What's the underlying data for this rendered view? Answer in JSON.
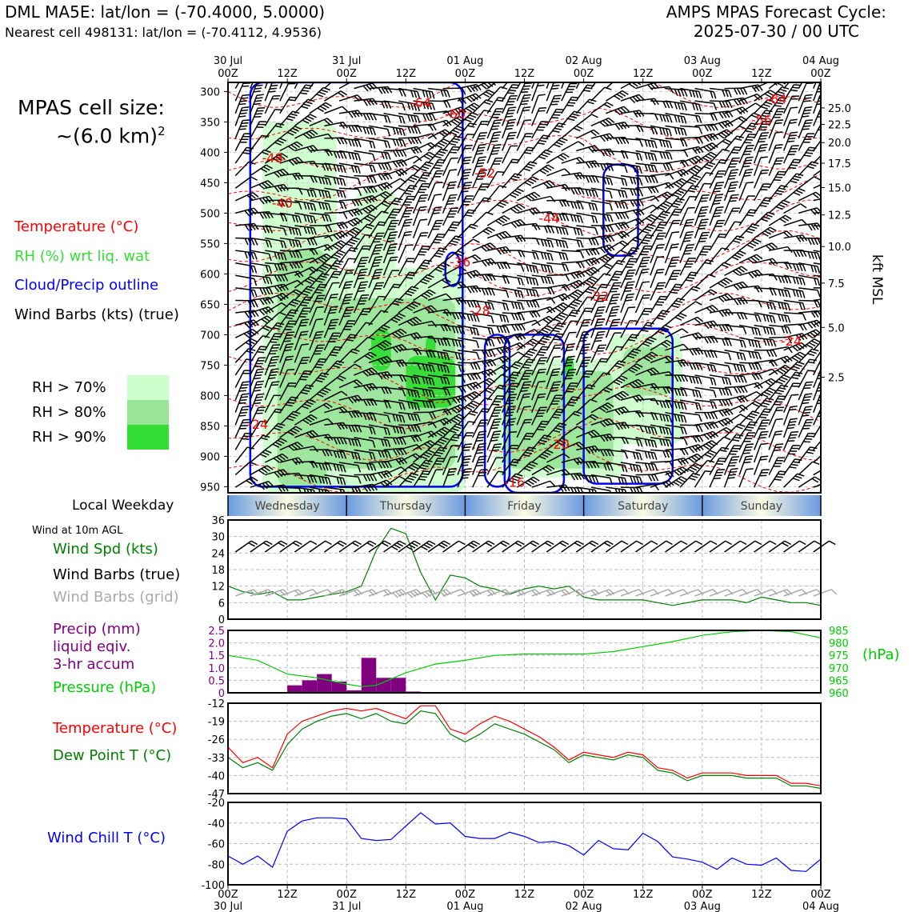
{
  "header": {
    "station_line": "DML MA5E: lat/lon = (-70.4000, 5.0000)",
    "cell_line": "Nearest cell 498131: lat/lon = (-70.4112, 4.9536)",
    "forecast_title": "AMPS MPAS Forecast Cycle:",
    "forecast_cycle": "2025-07-30 / 00 UTC"
  },
  "cell_size": {
    "label": "MPAS cell size:",
    "value": "~(6.0 km)",
    "exp": "2"
  },
  "legend": {
    "temperature": "Temperature (°C)",
    "rh": "RH (%) wrt liq. wat",
    "cloud": "Cloud/Precip outline",
    "wind": "Wind Barbs (kts) (true)",
    "rh70": "RH > 70%",
    "rh80": "RH > 80%",
    "rh90": "RH > 90%"
  },
  "colors": {
    "temperature": "#ff0000",
    "rh_label": "#33dd33",
    "cloud": "#0000ff",
    "rh70": "#ccffcc",
    "rh80": "#99e699",
    "rh90": "#33dd33",
    "wind_speed": "#008000",
    "precip": "#800080",
    "pressure": "#00cc00",
    "dewpoint": "#008000",
    "windchill": "#0000ff",
    "grid_barbs": "#aaaaaa"
  },
  "time_axis": {
    "top_dates": [
      "30 Jul",
      "31 Jul",
      "01 Aug",
      "02 Aug",
      "03 Aug",
      "04 Aug"
    ],
    "top_hours": [
      "00Z",
      "12Z",
      "00Z",
      "12Z",
      "00Z",
      "12Z",
      "00Z",
      "12Z",
      "00Z",
      "12Z",
      "00Z"
    ],
    "bottom_hours": [
      "00Z",
      "12Z",
      "00Z",
      "12Z",
      "00Z",
      "12Z",
      "00Z",
      "12Z",
      "00Z",
      "12Z",
      "00Z"
    ],
    "bottom_dates": [
      "30 Jul",
      "31 Jul",
      "01 Aug",
      "02 Aug",
      "03 Aug",
      "04 Aug"
    ]
  },
  "weekday": {
    "label": "Local Weekday",
    "days": [
      "Wednesday",
      "Thursday",
      "Friday",
      "Saturday",
      "Sunday"
    ]
  },
  "sfc_labels": {
    "wind_at": "Wind at 10m AGL",
    "wind_spd": "Wind Spd (kts)",
    "barbs_true": "Wind Barbs (true)",
    "barbs_grid": "Wind Barbs (grid)",
    "precip1": "Precip (mm)",
    "precip2": "liquid eqiv.",
    "precip3": "3-hr accum",
    "pressure": "Pressure (hPa)",
    "hpa_unit": "(hPa)",
    "temp": "Temperature (°C)",
    "dew": "Dew Point T (°C)",
    "chill": "Wind Chill T (°C)"
  },
  "chart_data": [
    {
      "type": "heatmap",
      "name": "time-height cross section",
      "y_label_right": "kft MSL",
      "y_pressure_ticks": [
        300,
        350,
        400,
        450,
        500,
        550,
        600,
        650,
        700,
        750,
        800,
        850,
        900,
        950
      ],
      "y_kft_ticks": [
        "25.0",
        "22.5",
        "20.0",
        "17.5",
        "15.0",
        "12.5",
        "10.0",
        "7.5",
        "5.0",
        "2.5"
      ],
      "y_kft_pressure": [
        327,
        354,
        384,
        418,
        458,
        503,
        555,
        615,
        688,
        770
      ],
      "xlim_hours": [
        0,
        120
      ],
      "temperature_contour_labels": [
        {
          "text": "-64",
          "t": 39,
          "p": 318
        },
        {
          "text": "-60",
          "t": 46,
          "p": 336
        },
        {
          "text": "-64",
          "t": 111,
          "p": 312
        },
        {
          "text": "-56",
          "t": 108,
          "p": 346
        },
        {
          "text": "-48",
          "t": 9,
          "p": 409
        },
        {
          "text": "-52",
          "t": 52,
          "p": 434
        },
        {
          "text": "-40",
          "t": 11,
          "p": 483
        },
        {
          "text": "-44",
          "t": 65,
          "p": 508
        },
        {
          "text": "-36",
          "t": 47,
          "p": 580
        },
        {
          "text": "-32",
          "t": 75,
          "p": 636
        },
        {
          "text": "-28",
          "t": 51,
          "p": 660
        },
        {
          "text": "-24",
          "t": 114,
          "p": 710
        },
        {
          "text": "-24",
          "t": 6,
          "p": 847
        },
        {
          "text": "-20",
          "t": 67,
          "p": 880
        },
        {
          "text": "-16",
          "t": 58,
          "p": 942
        }
      ],
      "rh_regions": {
        "rh70": [
          {
            "t0": 7,
            "t1": 22,
            "p0": 350,
            "p1": 960
          },
          {
            "t0": 22,
            "t1": 48,
            "p0": 590,
            "p1": 960
          },
          {
            "t0": 26,
            "t1": 34,
            "p0": 460,
            "p1": 600
          },
          {
            "t0": 54,
            "t1": 80,
            "p0": 740,
            "p1": 935
          },
          {
            "t0": 77,
            "t1": 92,
            "p0": 700,
            "p1": 880
          }
        ],
        "rh80": [
          {
            "t0": 10,
            "t1": 20,
            "p0": 560,
            "p1": 950
          },
          {
            "t0": 20,
            "t1": 46,
            "p0": 640,
            "p1": 920
          },
          {
            "t0": 56,
            "t1": 78,
            "p0": 760,
            "p1": 920
          },
          {
            "t0": 80,
            "t1": 90,
            "p0": 720,
            "p1": 800
          }
        ],
        "rh90": [
          {
            "t0": 36,
            "t1": 46,
            "p0": 735,
            "p1": 820
          },
          {
            "t0": 29,
            "t1": 33,
            "p0": 690,
            "p1": 760
          },
          {
            "t0": 40,
            "t1": 42,
            "p0": 700,
            "p1": 740
          },
          {
            "t0": 68,
            "t1": 70,
            "p0": 735,
            "p1": 770
          }
        ]
      },
      "cloud_outline_regions": [
        {
          "t0": 4.5,
          "t1": 47.5,
          "p0": 285,
          "p1": 950
        },
        {
          "t0": 52,
          "t1": 57,
          "p0": 700,
          "p1": 950
        },
        {
          "t0": 56,
          "t1": 68,
          "p0": 700,
          "p1": 960
        },
        {
          "t0": 72,
          "t1": 90,
          "p0": 690,
          "p1": 945
        },
        {
          "t0": 76,
          "t1": 83,
          "p0": 420,
          "p1": 570
        },
        {
          "t0": 44,
          "t1": 47,
          "p0": 565,
          "p1": 620
        }
      ]
    },
    {
      "type": "line",
      "name": "wind speed",
      "x": [
        0,
        3,
        6,
        9,
        12,
        15,
        18,
        21,
        24,
        27,
        30,
        33,
        36,
        39,
        42,
        45,
        48,
        51,
        54,
        57,
        60,
        63,
        66,
        69,
        72,
        75,
        78,
        81,
        84,
        87,
        90,
        93,
        96,
        99,
        102,
        105,
        108,
        111,
        114,
        117,
        120
      ],
      "y": [
        12,
        10,
        9,
        10,
        7,
        7,
        8,
        9,
        10,
        12,
        25,
        33,
        31,
        17,
        7,
        16,
        15,
        12,
        11,
        9,
        11,
        12,
        11,
        12,
        8,
        7,
        7,
        7,
        7,
        6,
        5,
        6,
        7,
        7,
        7,
        6,
        8,
        7,
        6,
        6,
        5
      ],
      "ylim": [
        0,
        36
      ],
      "yticks": [
        0,
        6,
        12,
        18,
        24,
        30,
        36
      ]
    },
    {
      "type": "bar",
      "name": "precip 3-hr accum",
      "x": [
        12,
        15,
        18,
        21,
        24,
        27,
        30,
        33,
        36,
        39
      ],
      "values": [
        0.3,
        0.5,
        0.75,
        0.45,
        0.1,
        1.4,
        0.6,
        0.6,
        0.05,
        0.0
      ],
      "ylim": [
        0,
        2.5
      ],
      "yticks": [
        "0",
        "0.5",
        "1.0",
        "1.5",
        "2.0",
        "2.5"
      ]
    },
    {
      "type": "line",
      "name": "pressure",
      "x": [
        0,
        6,
        12,
        18,
        24,
        27,
        30,
        36,
        42,
        48,
        54,
        60,
        66,
        72,
        78,
        84,
        90,
        96,
        102,
        108,
        114,
        120
      ],
      "y": [
        975,
        973,
        967.5,
        966,
        963.5,
        962.5,
        963,
        968,
        971.5,
        973,
        975,
        975.5,
        975.5,
        975.5,
        976.5,
        978.5,
        980.5,
        983,
        984.5,
        985,
        984.5,
        982
      ],
      "ylim": [
        960,
        985
      ],
      "yticks": [
        "960",
        "965",
        "970",
        "975",
        "980",
        "985"
      ]
    },
    {
      "type": "line",
      "name": "temperature and dew point",
      "x": [
        0,
        3,
        6,
        9,
        12,
        15,
        18,
        21,
        24,
        27,
        30,
        33,
        36,
        39,
        42,
        45,
        48,
        51,
        54,
        57,
        60,
        63,
        66,
        69,
        72,
        75,
        78,
        81,
        84,
        87,
        90,
        93,
        96,
        99,
        102,
        105,
        108,
        111,
        114,
        117,
        120
      ],
      "series": [
        {
          "name": "Temperature",
          "values": [
            -29,
            -35,
            -33,
            -37,
            -24,
            -19,
            -17,
            -15,
            -14,
            -15,
            -14,
            -16,
            -18,
            -13,
            -13,
            -22,
            -24,
            -20,
            -17,
            -19,
            -22,
            -25,
            -29,
            -34,
            -31,
            -32,
            -33,
            -31,
            -32,
            -37,
            -38,
            -41,
            -39,
            -39,
            -39,
            -40,
            -40,
            -40,
            -43,
            -43,
            -44
          ]
        },
        {
          "name": "Dew Point",
          "values": [
            -33,
            -37,
            -35,
            -38,
            -28,
            -22,
            -19,
            -17,
            -16,
            -18,
            -16,
            -19,
            -20,
            -15,
            -16,
            -24,
            -27,
            -24,
            -20,
            -22,
            -24,
            -27,
            -30,
            -35,
            -32,
            -33,
            -34,
            -32,
            -33,
            -38,
            -39,
            -42,
            -40,
            -40,
            -40,
            -41,
            -41,
            -41,
            -44,
            -44,
            -45
          ]
        }
      ],
      "ylim": [
        -47,
        -12
      ],
      "yticks": [
        "-47",
        "-40",
        "-33",
        "-26",
        "-19",
        "-12"
      ]
    },
    {
      "type": "line",
      "name": "wind chill",
      "x": [
        0,
        3,
        6,
        9,
        12,
        15,
        18,
        21,
        24,
        27,
        30,
        33,
        36,
        39,
        42,
        45,
        48,
        51,
        54,
        57,
        60,
        63,
        66,
        69,
        72,
        75,
        78,
        81,
        84,
        87,
        90,
        93,
        96,
        99,
        102,
        105,
        108,
        111,
        114,
        117,
        120
      ],
      "y": [
        -72,
        -80,
        -72,
        -83,
        -48,
        -38,
        -35,
        -35,
        -36,
        -55,
        -57,
        -56,
        -43,
        -30,
        -41,
        -40,
        -53,
        -55,
        -55,
        -49,
        -53,
        -59,
        -58,
        -62,
        -71,
        -57,
        -65,
        -66,
        -50,
        -58,
        -73,
        -75,
        -78,
        -85,
        -74,
        -80,
        -81,
        -74,
        -86,
        -87,
        -75
      ],
      "ylim": [
        -100,
        -20
      ],
      "yticks": [
        "-100",
        "-80",
        "-60",
        "-40",
        "-20"
      ]
    }
  ]
}
